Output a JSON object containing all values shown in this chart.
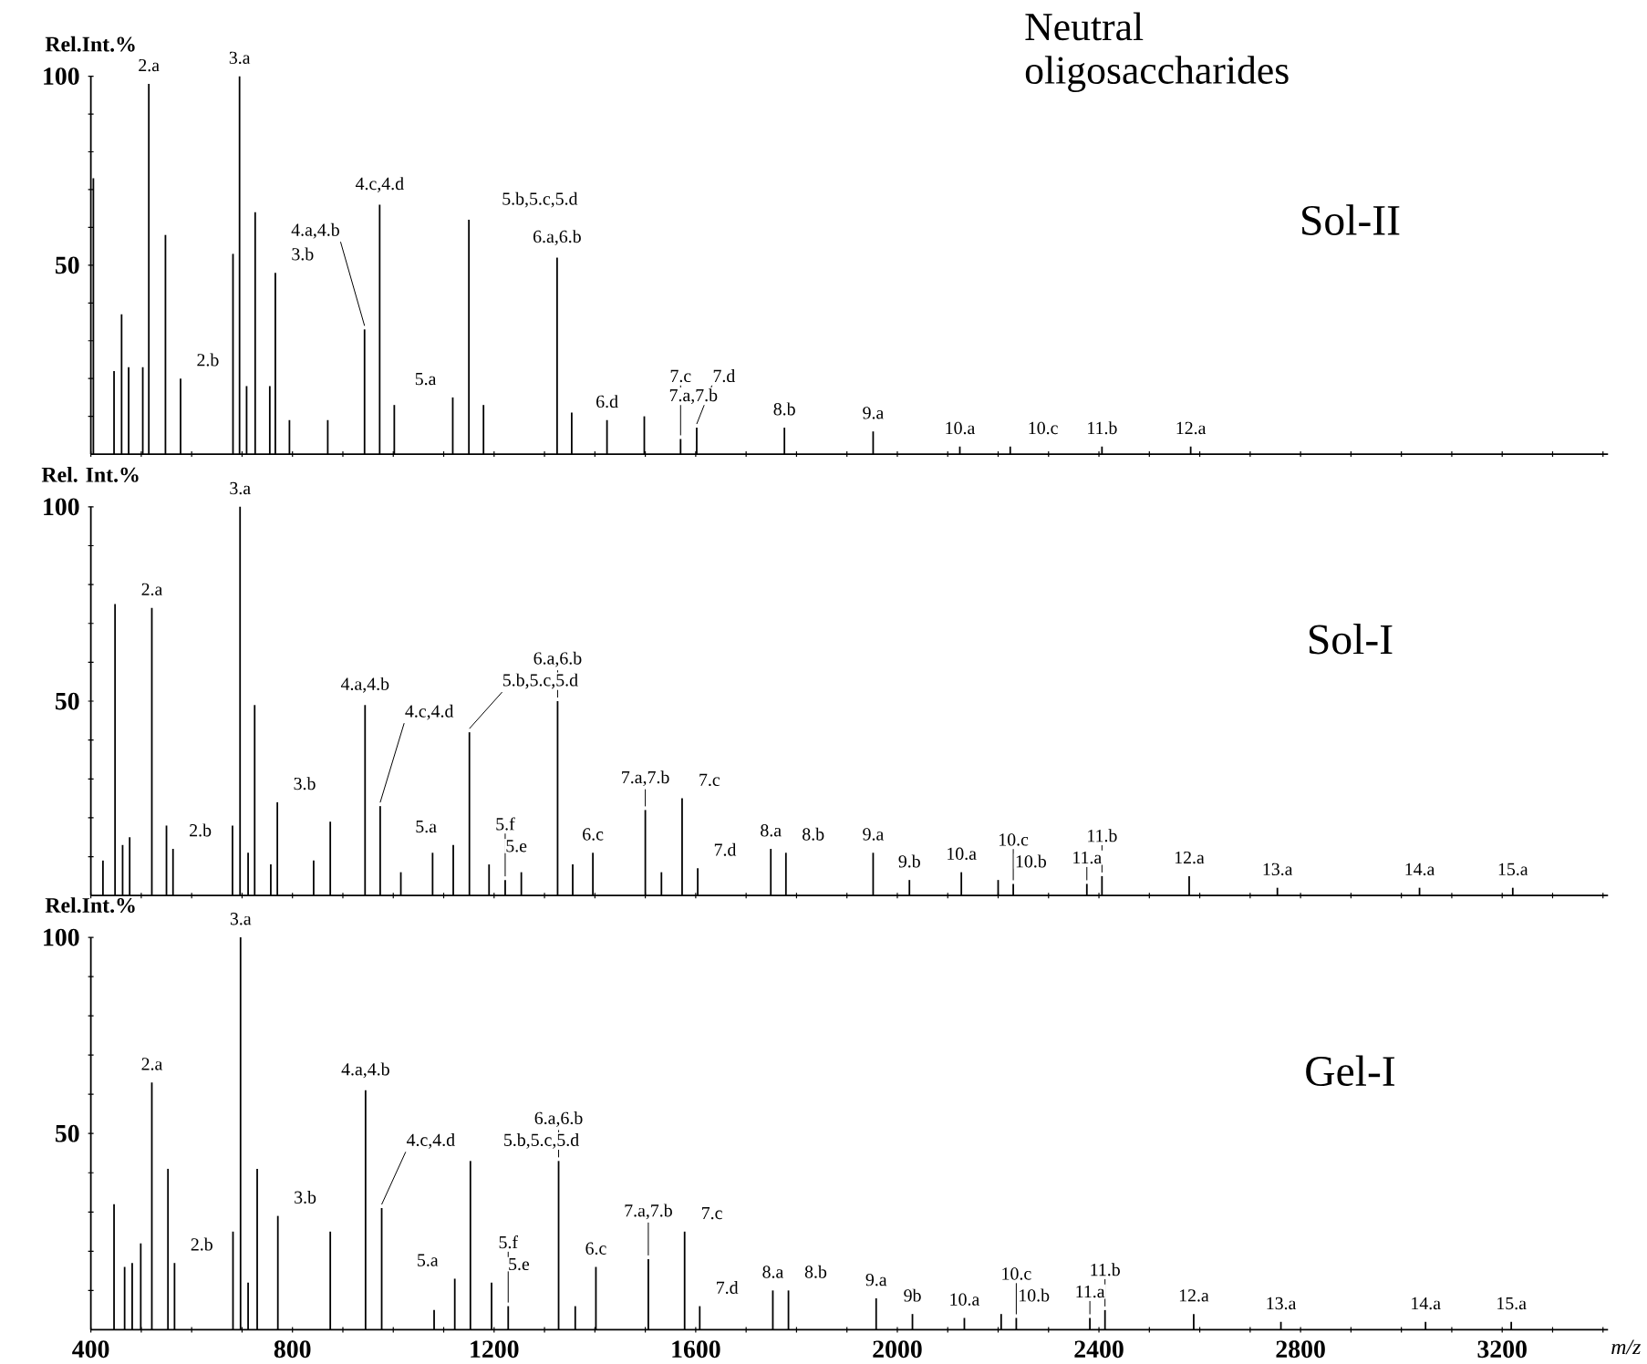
{
  "chart_data": [
    {
      "type": "bar",
      "title": "Neutral oligosaccharides",
      "subtitle": "Sol-II",
      "ylabel": "Rel.Int.%",
      "color": "#000000",
      "tick_labels": "y",
      "xlim": [
        400,
        3410
      ],
      "ylim": [
        0,
        100
      ],
      "xticks": [
        400,
        {
          "value": 500,
          "label": null
        },
        {
          "value": 600,
          "label": null
        },
        {
          "value": 700,
          "label": null
        },
        800,
        {
          "value": 900,
          "label": null
        },
        {
          "value": 1000,
          "label": null
        },
        {
          "value": 1100,
          "label": null
        },
        1200,
        {
          "value": 1300,
          "label": null
        },
        {
          "value": 1400,
          "label": null
        },
        {
          "value": 1500,
          "label": null
        },
        1600,
        {
          "value": 1700,
          "label": null
        },
        {
          "value": 1800,
          "label": null
        },
        {
          "value": 1900,
          "label": null
        },
        2000,
        {
          "value": 2100,
          "label": null
        },
        {
          "value": 2200,
          "label": null
        },
        {
          "value": 2300,
          "label": null
        },
        2400,
        {
          "value": 2500,
          "label": null
        },
        {
          "value": 2600,
          "label": null
        },
        {
          "value": 2700,
          "label": null
        },
        2800,
        {
          "value": 2900,
          "label": null
        },
        {
          "value": 3000,
          "label": null
        },
        {
          "value": 3100,
          "label": null
        },
        3200,
        {
          "value": 3300,
          "label": null
        },
        {
          "value": 3400,
          "label": null
        }
      ],
      "yticks": [
        {
          "value": 10,
          "label": null
        },
        {
          "value": 20,
          "label": null
        },
        {
          "value": 30,
          "label": null
        },
        {
          "value": 40,
          "label": null
        },
        50,
        {
          "value": 60,
          "label": null
        },
        {
          "value": 70,
          "label": null
        },
        {
          "value": 80,
          "label": null
        },
        {
          "value": 90,
          "label": null
        },
        100
      ],
      "x": [
        405,
        446,
        461,
        475,
        503,
        515,
        548,
        578,
        682,
        695,
        709,
        726,
        755,
        766,
        794,
        870,
        943,
        973,
        1002,
        1118,
        1150,
        1179,
        1325,
        1354,
        1424,
        1498,
        1570,
        1602,
        1776,
        1952,
        2124,
        2224,
        2406,
        2582
      ],
      "values": [
        73,
        22,
        37,
        23,
        23,
        98,
        58,
        20,
        53,
        100,
        18,
        64,
        18,
        48,
        9,
        9,
        33,
        66,
        13,
        15,
        62,
        13,
        52,
        11,
        9,
        10,
        4,
        7,
        7,
        6,
        2,
        2,
        2,
        2
      ],
      "annotations": [
        {
          "text": "2.a",
          "x": 515,
          "y": 98
        },
        {
          "text": "2.b",
          "x": 578,
          "y": 20
        },
        {
          "text": "3.a",
          "x": 695,
          "y": 100
        },
        {
          "text": "3.b",
          "x": 766,
          "y": 48
        },
        {
          "text": "4.a,4.b",
          "x": 943,
          "y": 33
        },
        {
          "text": "4.c,4.d",
          "x": 973,
          "y": 66
        },
        {
          "text": "5.a",
          "x": 1118,
          "y": 15
        },
        {
          "text": "5.b,5.c,5.d",
          "x": 1150,
          "y": 62
        },
        {
          "text": "6.a,6.b",
          "x": 1325,
          "y": 52
        },
        {
          "text": "6.d",
          "x": 1424,
          "y": 9
        },
        {
          "text": "7.a,7.b",
          "x": 1498,
          "y": 10
        },
        {
          "text": "7.c",
          "x": 1570,
          "y": 4
        },
        {
          "text": "7.d",
          "x": 1602,
          "y": 7
        },
        {
          "text": "8.b",
          "x": 1776,
          "y": 7
        },
        {
          "text": "9.a",
          "x": 1952,
          "y": 6
        },
        {
          "text": "10.a",
          "x": 2124,
          "y": 2
        },
        {
          "text": "10.c",
          "x": 2224,
          "y": 2
        },
        {
          "text": "11.b",
          "x": 2406,
          "y": 2
        },
        {
          "text": "12.a",
          "x": 2582,
          "y": 2
        }
      ]
    },
    {
      "type": "bar",
      "title": "Sol-I",
      "ylabel": "Rel. Int.%",
      "color": "#000000",
      "tick_labels": "y",
      "xlim": [
        400,
        3410
      ],
      "ylim": [
        0,
        100
      ],
      "xticks": [
        400,
        {
          "value": 500,
          "label": null
        },
        {
          "value": 600,
          "label": null
        },
        {
          "value": 700,
          "label": null
        },
        800,
        {
          "value": 900,
          "label": null
        },
        {
          "value": 1000,
          "label": null
        },
        {
          "value": 1100,
          "label": null
        },
        1200,
        {
          "value": 1300,
          "label": null
        },
        {
          "value": 1400,
          "label": null
        },
        {
          "value": 1500,
          "label": null
        },
        1600,
        {
          "value": 1700,
          "label": null
        },
        {
          "value": 1800,
          "label": null
        },
        {
          "value": 1900,
          "label": null
        },
        2000,
        {
          "value": 2100,
          "label": null
        },
        {
          "value": 2200,
          "label": null
        },
        {
          "value": 2300,
          "label": null
        },
        2400,
        {
          "value": 2500,
          "label": null
        },
        {
          "value": 2600,
          "label": null
        },
        {
          "value": 2700,
          "label": null
        },
        2800,
        {
          "value": 2900,
          "label": null
        },
        {
          "value": 3000,
          "label": null
        },
        {
          "value": 3100,
          "label": null
        },
        3200,
        {
          "value": 3300,
          "label": null
        },
        {
          "value": 3400,
          "label": null
        }
      ],
      "yticks": [
        {
          "value": 10,
          "label": null
        },
        {
          "value": 20,
          "label": null
        },
        {
          "value": 30,
          "label": null
        },
        {
          "value": 40,
          "label": null
        },
        50,
        {
          "value": 60,
          "label": null
        },
        {
          "value": 70,
          "label": null
        },
        {
          "value": 80,
          "label": null
        },
        {
          "value": 90,
          "label": null
        },
        100
      ],
      "x": [
        424,
        448,
        463,
        477,
        521,
        550,
        563,
        681,
        696,
        712,
        725,
        757,
        770,
        842,
        875,
        944,
        974,
        1015,
        1078,
        1119,
        1151,
        1190,
        1222,
        1254,
        1326,
        1356,
        1396,
        1500,
        1532,
        1573,
        1604,
        1749,
        1779,
        1952,
        2024,
        2127,
        2200,
        2230,
        2376,
        2406,
        2579,
        2754,
        3036,
        3221
      ],
      "values": [
        9,
        75,
        13,
        15,
        74,
        18,
        12,
        18,
        100,
        11,
        49,
        8,
        24,
        9,
        19,
        49,
        23,
        6,
        11,
        13,
        42,
        8,
        4,
        6,
        50,
        8,
        11,
        22,
        6,
        25,
        7,
        12,
        11,
        11,
        4,
        6,
        4,
        3,
        3,
        5,
        5,
        2,
        2,
        2
      ],
      "annotations": [
        {
          "text": "2.a",
          "x": 521,
          "y": 74
        },
        {
          "text": "2.b",
          "x": 563,
          "y": 12
        },
        {
          "text": "3.a",
          "x": 696,
          "y": 100
        },
        {
          "text": "3.b",
          "x": 770,
          "y": 24
        },
        {
          "text": "4.a,4.b",
          "x": 944,
          "y": 49
        },
        {
          "text": "4.c,4.d",
          "x": 974,
          "y": 23
        },
        {
          "text": "5.a",
          "x": 1119,
          "y": 13
        },
        {
          "text": "5.b,5.c,5.d",
          "x": 1151,
          "y": 42
        },
        {
          "text": "5.e",
          "x": 1190,
          "y": 8
        },
        {
          "text": "5.f",
          "x": 1222,
          "y": 4
        },
        {
          "text": "6.a,6.b",
          "x": 1326,
          "y": 50
        },
        {
          "text": "6.c",
          "x": 1396,
          "y": 11
        },
        {
          "text": "7.a,7.b",
          "x": 1500,
          "y": 22
        },
        {
          "text": "7.c",
          "x": 1573,
          "y": 25
        },
        {
          "text": "7.d",
          "x": 1604,
          "y": 7
        },
        {
          "text": "8.a",
          "x": 1749,
          "y": 12
        },
        {
          "text": "8.b",
          "x": 1779,
          "y": 11
        },
        {
          "text": "9.a",
          "x": 1952,
          "y": 11
        },
        {
          "text": "9.b",
          "x": 2024,
          "y": 4
        },
        {
          "text": "10.a",
          "x": 2127,
          "y": 6
        },
        {
          "text": "10.b",
          "x": 2200,
          "y": 4
        },
        {
          "text": "10.c",
          "x": 2230,
          "y": 3
        },
        {
          "text": "11.a",
          "x": 2376,
          "y": 3
        },
        {
          "text": "11.b",
          "x": 2406,
          "y": 5
        },
        {
          "text": "12.a",
          "x": 2579,
          "y": 5
        },
        {
          "text": "13.a",
          "x": 2754,
          "y": 2
        },
        {
          "text": "14.a",
          "x": 3036,
          "y": 2
        },
        {
          "text": "15.a",
          "x": 3221,
          "y": 2
        }
      ]
    },
    {
      "type": "bar",
      "title": "Gel-I",
      "ylabel": "Rel.Int.%",
      "xlabel": "m/z",
      "color": "#000000",
      "xlim": [
        400,
        3410
      ],
      "ylim": [
        0,
        100
      ],
      "xticks": [
        400,
        {
          "value": 500,
          "label": null
        },
        {
          "value": 600,
          "label": null
        },
        {
          "value": 700,
          "label": null
        },
        800,
        {
          "value": 900,
          "label": null
        },
        {
          "value": 1000,
          "label": null
        },
        {
          "value": 1100,
          "label": null
        },
        1200,
        {
          "value": 1300,
          "label": null
        },
        {
          "value": 1400,
          "label": null
        },
        {
          "value": 1500,
          "label": null
        },
        1600,
        {
          "value": 1700,
          "label": null
        },
        {
          "value": 1800,
          "label": null
        },
        {
          "value": 1900,
          "label": null
        },
        2000,
        {
          "value": 2100,
          "label": null
        },
        {
          "value": 2200,
          "label": null
        },
        {
          "value": 2300,
          "label": null
        },
        2400,
        {
          "value": 2500,
          "label": null
        },
        {
          "value": 2600,
          "label": null
        },
        {
          "value": 2700,
          "label": null
        },
        2800,
        {
          "value": 2900,
          "label": null
        },
        {
          "value": 3000,
          "label": null
        },
        {
          "value": 3100,
          "label": null
        },
        3200,
        {
          "value": 3300,
          "label": null
        },
        {
          "value": 3400,
          "label": null
        }
      ],
      "yticks": [
        {
          "value": 10,
          "label": null
        },
        {
          "value": 20,
          "label": null
        },
        {
          "value": 30,
          "label": null
        },
        {
          "value": 40,
          "label": null
        },
        50,
        {
          "value": 60,
          "label": null
        },
        {
          "value": 70,
          "label": null
        },
        {
          "value": 80,
          "label": null
        },
        {
          "value": 90,
          "label": null
        },
        100
      ],
      "x": [
        446,
        467,
        482,
        499,
        521,
        553,
        566,
        682,
        697,
        712,
        730,
        771,
        875,
        945,
        977,
        1081,
        1122,
        1153,
        1195,
        1228,
        1328,
        1361,
        1402,
        1506,
        1578,
        1608,
        1753,
        1784,
        1958,
        2030,
        2133,
        2206,
        2236,
        2382,
        2412,
        2588,
        2761,
        3048,
        3218
      ],
      "values": [
        32,
        16,
        17,
        22,
        63,
        41,
        17,
        25,
        100,
        12,
        41,
        29,
        25,
        61,
        31,
        5,
        13,
        43,
        12,
        6,
        43,
        6,
        16,
        18,
        25,
        6,
        10,
        10,
        8,
        4,
        3,
        4,
        3,
        3,
        5,
        4,
        2,
        2,
        2
      ],
      "annotations": [
        {
          "text": "2.a",
          "x": 521,
          "y": 63
        },
        {
          "text": "2.b",
          "x": 566,
          "y": 17
        },
        {
          "text": "3.a",
          "x": 697,
          "y": 100
        },
        {
          "text": "3.b",
          "x": 771,
          "y": 29
        },
        {
          "text": "4.a,4.b",
          "x": 945,
          "y": 61
        },
        {
          "text": "4.c,4.d",
          "x": 977,
          "y": 31
        },
        {
          "text": "5.a",
          "x": 1122,
          "y": 13
        },
        {
          "text": "5.b,5.c,5.d",
          "x": 1153,
          "y": 43
        },
        {
          "text": "5.e",
          "x": 1195,
          "y": 12
        },
        {
          "text": "5.f",
          "x": 1228,
          "y": 6
        },
        {
          "text": "6.a,6.b",
          "x": 1328,
          "y": 43
        },
        {
          "text": "6.c",
          "x": 1402,
          "y": 16
        },
        {
          "text": "7.a,7.b",
          "x": 1506,
          "y": 18
        },
        {
          "text": "7.c",
          "x": 1578,
          "y": 25
        },
        {
          "text": "7.d",
          "x": 1608,
          "y": 6
        },
        {
          "text": "8.a",
          "x": 1753,
          "y": 10
        },
        {
          "text": "8.b",
          "x": 1784,
          "y": 10
        },
        {
          "text": "9.a",
          "x": 1958,
          "y": 8
        },
        {
          "text": "9b",
          "x": 2030,
          "y": 4
        },
        {
          "text": "10.a",
          "x": 2133,
          "y": 3
        },
        {
          "text": "10.b",
          "x": 2206,
          "y": 4
        },
        {
          "text": "10.c",
          "x": 2236,
          "y": 3
        },
        {
          "text": "11.a",
          "x": 2382,
          "y": 3
        },
        {
          "text": "11.b",
          "x": 2412,
          "y": 5
        },
        {
          "text": "12.a",
          "x": 2588,
          "y": 4
        },
        {
          "text": "13.a",
          "x": 2761,
          "y": 2
        },
        {
          "text": "14.a",
          "x": 3048,
          "y": 2
        },
        {
          "text": "15.a",
          "x": 3218,
          "y": 2
        }
      ]
    }
  ]
}
